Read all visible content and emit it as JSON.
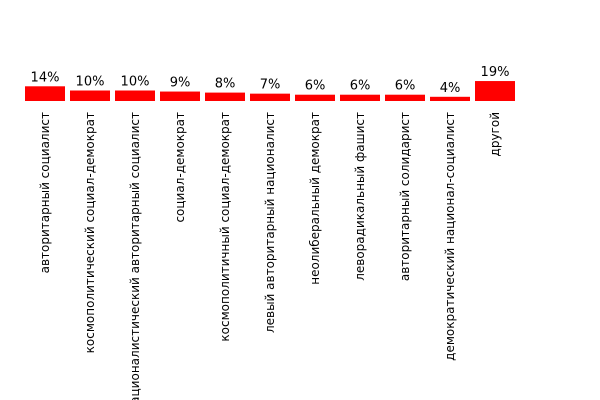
{
  "chart_data": {
    "type": "bar",
    "title": "",
    "xlabel": "",
    "ylabel": "",
    "categories": [
      "авторитарный социалист",
      "космополитический социал-демократ",
      "националистический авторитарный социалист",
      "социал-демократ",
      "космополитичный социал-демократ",
      "левый авторитарный националист",
      "неолиберальный демократ",
      "леворадикальный фашист",
      "авторитарный солидарист",
      "демократический национал-социалист",
      "другой"
    ],
    "values": [
      14,
      10,
      10,
      9,
      8,
      7,
      6,
      6,
      6,
      4,
      19
    ],
    "value_labels": [
      "14%",
      "10%",
      "10%",
      "9%",
      "8%",
      "7%",
      "6%",
      "6%",
      "6%",
      "4%",
      "19%"
    ],
    "value_unit": "%",
    "bar_color": "#ff0000",
    "ylim": [
      0,
      19
    ],
    "grid": false,
    "legend": "none"
  }
}
